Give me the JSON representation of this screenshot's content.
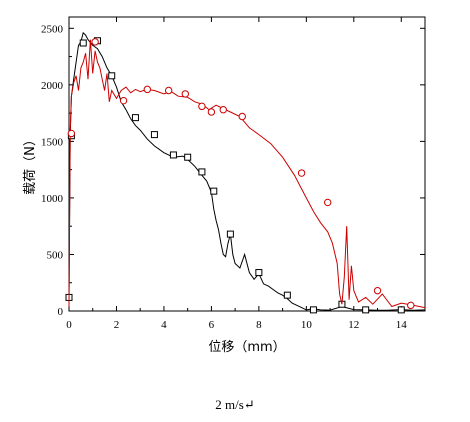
{
  "caption": "2 m/s↵",
  "chart_data": {
    "type": "line",
    "xlabel": "位移（mm）",
    "ylabel": "载荷（N）",
    "xlim": [
      0,
      15
    ],
    "ylim": [
      0,
      2600
    ],
    "xticks": [
      0,
      2,
      4,
      6,
      8,
      10,
      12,
      14
    ],
    "yticks": [
      0,
      500,
      1000,
      1500,
      2000,
      2500
    ],
    "grid": false,
    "legend": "none",
    "series": [
      {
        "color": "#000000",
        "marker": "square",
        "x": [
          0,
          0.05,
          0.1,
          0.2,
          0.3,
          0.4,
          0.5,
          0.6,
          0.7,
          0.8,
          1.0,
          1.2,
          1.4,
          1.6,
          1.8,
          2.0,
          2.2,
          2.4,
          2.6,
          2.8,
          3.0,
          3.3,
          3.6,
          4.0,
          4.4,
          4.8,
          5.0,
          5.3,
          5.6,
          5.8,
          6.0,
          6.1,
          6.2,
          6.3,
          6.4,
          6.5,
          6.6,
          6.7,
          6.8,
          6.9,
          7.0,
          7.2,
          7.4,
          7.6,
          7.8,
          8.0,
          8.2,
          8.4,
          8.6,
          8.8,
          9.0,
          9.2,
          9.4,
          9.6,
          9.8,
          10.0,
          10.3,
          10.6,
          11.0,
          11.5,
          12.0,
          12.5,
          13.0,
          13.5,
          14.0,
          14.5,
          15.0
        ],
        "y": [
          120,
          1550,
          1900,
          2050,
          2200,
          2350,
          2380,
          2460,
          2440,
          2400,
          2350,
          2320,
          2250,
          2150,
          2080,
          1980,
          1850,
          1780,
          1700,
          1640,
          1600,
          1520,
          1460,
          1400,
          1360,
          1370,
          1340,
          1280,
          1200,
          1150,
          1050,
          900,
          800,
          720,
          600,
          500,
          480,
          600,
          680,
          500,
          420,
          380,
          500,
          340,
          280,
          330,
          240,
          220,
          190,
          160,
          140,
          110,
          70,
          50,
          30,
          10,
          20,
          10,
          8,
          40,
          12,
          10,
          6,
          8,
          12,
          6,
          10
        ],
        "markers_x": [
          0.0,
          0.1,
          0.6,
          1.2,
          1.8,
          2.8,
          3.6,
          4.4,
          5.0,
          5.6,
          6.1,
          6.8,
          8.0,
          9.2,
          10.3,
          11.5,
          12.5,
          14.0
        ],
        "markers_y": [
          120,
          1550,
          2370,
          2390,
          2080,
          1710,
          1560,
          1380,
          1360,
          1230,
          1060,
          680,
          340,
          140,
          10,
          60,
          10,
          10
        ]
      },
      {
        "color": "#cc0000",
        "marker": "circle",
        "x": [
          0,
          0.05,
          0.1,
          0.2,
          0.3,
          0.4,
          0.5,
          0.6,
          0.7,
          0.8,
          0.9,
          1.0,
          1.1,
          1.2,
          1.3,
          1.4,
          1.5,
          1.6,
          1.7,
          1.8,
          2.0,
          2.2,
          2.4,
          2.6,
          2.8,
          3.0,
          3.3,
          3.6,
          4.0,
          4.3,
          4.6,
          5.0,
          5.3,
          5.6,
          5.9,
          6.2,
          6.5,
          6.8,
          7.2,
          7.6,
          8.0,
          8.5,
          9.0,
          9.5,
          10.0,
          10.3,
          10.6,
          10.9,
          11.1,
          11.3,
          11.4,
          11.5,
          11.6,
          11.7,
          11.8,
          11.9,
          12.0,
          12.2,
          12.5,
          12.8,
          13.2,
          13.6,
          14.0,
          14.5,
          15.0
        ],
        "y": [
          40,
          1580,
          1900,
          2020,
          2080,
          1950,
          2150,
          2200,
          2280,
          2050,
          2400,
          2100,
          2300,
          2200,
          2150,
          2050,
          1950,
          2100,
          1850,
          1950,
          1880,
          1950,
          1980,
          1930,
          1960,
          1940,
          1960,
          1950,
          1920,
          1940,
          1900,
          1890,
          1850,
          1830,
          1780,
          1820,
          1790,
          1760,
          1720,
          1620,
          1560,
          1480,
          1360,
          1200,
          1000,
          880,
          780,
          700,
          600,
          420,
          150,
          60,
          300,
          750,
          100,
          400,
          180,
          80,
          120,
          60,
          150,
          40,
          70,
          50,
          30
        ],
        "markers_x": [
          0.1,
          1.1,
          2.3,
          3.3,
          4.2,
          4.9,
          5.6,
          6.0,
          6.5,
          7.3,
          9.8,
          10.9,
          13.0,
          14.4
        ],
        "markers_y": [
          1570,
          2380,
          1860,
          1960,
          1950,
          1920,
          1810,
          1760,
          1780,
          1720,
          1220,
          960,
          180,
          50
        ]
      }
    ]
  }
}
